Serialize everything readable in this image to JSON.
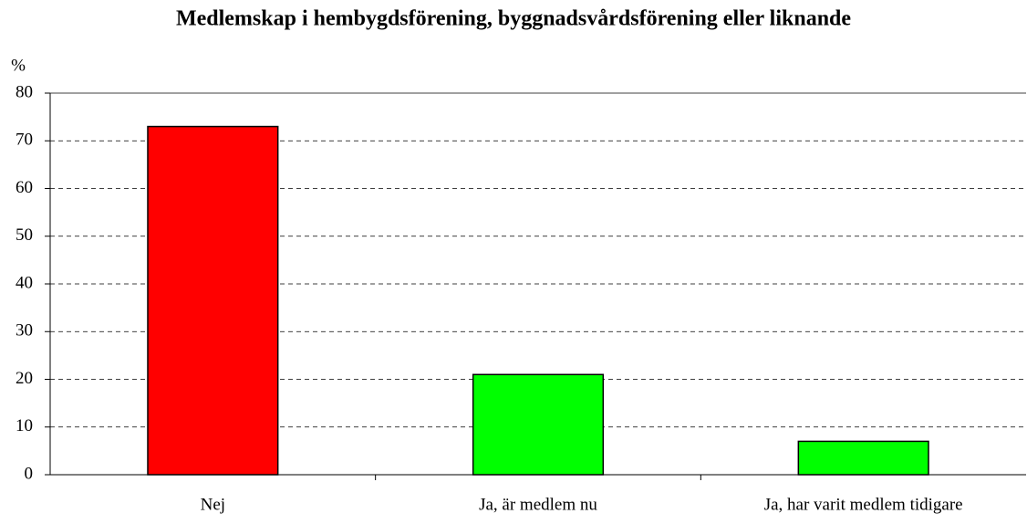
{
  "chart_data": {
    "type": "bar",
    "title": "Medlemskap i hembygdsförening, byggnadsvårdsförening eller liknande",
    "y_label": "%",
    "categories": [
      "Nej",
      "Ja, är medlem nu",
      "Ja, har varit medlem tidigare"
    ],
    "values": [
      73,
      21,
      7
    ],
    "colors": [
      "#ff0000",
      "#00ff00",
      "#00ff00"
    ],
    "ylim": [
      0,
      80
    ],
    "yticks": [
      0,
      10,
      20,
      30,
      40,
      50,
      60,
      70,
      80
    ],
    "grid": true
  }
}
